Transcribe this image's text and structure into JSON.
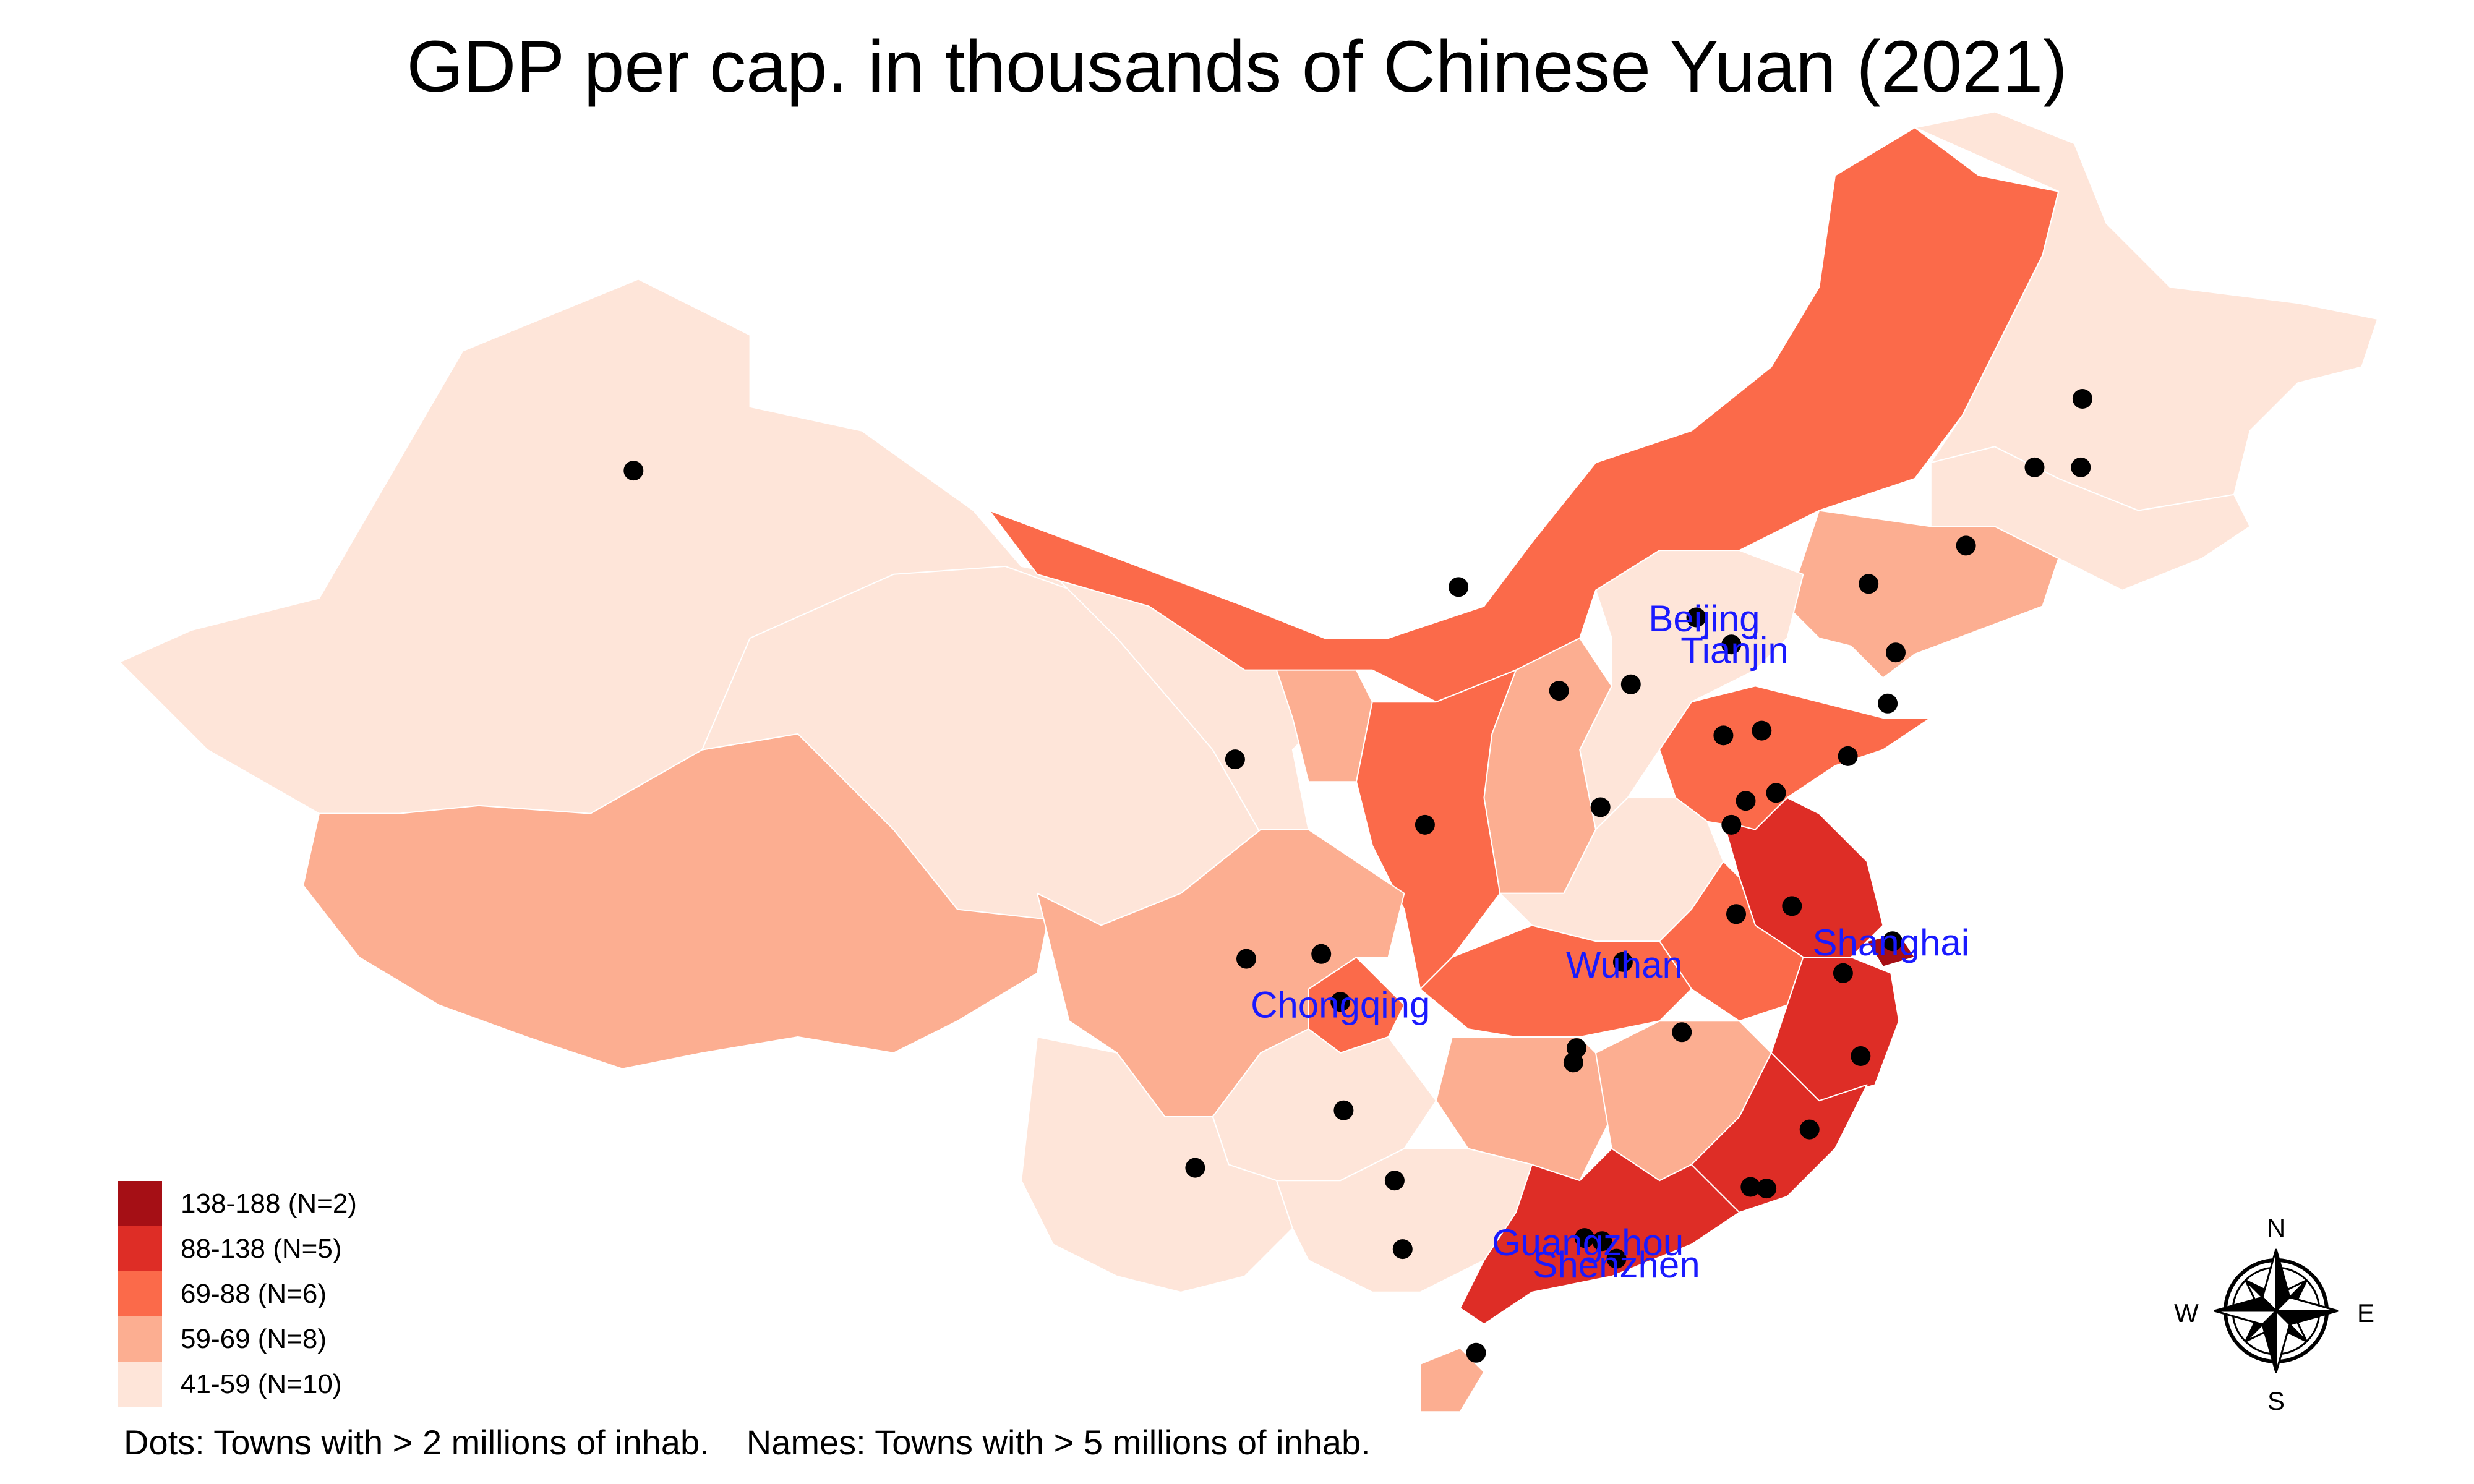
{
  "title": "GDP per cap. in thousands of Chinese Yuan (2021)",
  "legend": [
    {
      "label": "138-188 (N=2)",
      "color": "#a50f15"
    },
    {
      "label": "88-138 (N=5)",
      "color": "#de2d26"
    },
    {
      "label": "69-88 (N=6)",
      "color": "#fb6a4a"
    },
    {
      "label": "59-69 (N=8)",
      "color": "#fcae91"
    },
    {
      "label": "41-59 (N=10)",
      "color": "#fee5d9"
    }
  ],
  "footnote": {
    "dots": "Dots: Towns with > 2 millions of inhab.",
    "names": "Names: Towns with > 5 millions of inhab."
  },
  "city_labels": [
    "Beijing",
    "Tianjin",
    "Shanghai",
    "Wuhan",
    "Chongqing",
    "Guangzhou",
    "Shenzhen"
  ],
  "label_color": "#1a1aff",
  "compass": {
    "n": "N",
    "s": "S",
    "e": "E",
    "w": "W"
  }
}
